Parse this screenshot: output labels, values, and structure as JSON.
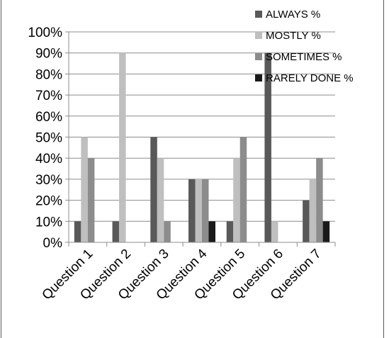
{
  "chart_data": {
    "type": "bar",
    "categories": [
      "Question 1",
      "Question 2",
      "Question 3",
      "Question 4",
      "Question 5",
      "Question 6",
      "Question 7"
    ],
    "series": [
      {
        "name": "ALWAYS %",
        "color": "#595959",
        "values": [
          10,
          10,
          50,
          30,
          10,
          90,
          20
        ]
      },
      {
        "name": "MOSTLY %",
        "color": "#bfbfbf",
        "values": [
          50,
          90,
          40,
          30,
          40,
          10,
          30
        ]
      },
      {
        "name": "SOMETIMES %",
        "color": "#8c8c8c",
        "values": [
          40,
          0,
          10,
          30,
          50,
          0,
          40
        ]
      },
      {
        "name": "RARELY DONE %",
        "color": "#1a1a1a",
        "values": [
          0,
          0,
          0,
          10,
          0,
          0,
          10
        ]
      }
    ],
    "yticks": [
      "0%",
      "10%",
      "20%",
      "30%",
      "40%",
      "50%",
      "60%",
      "70%",
      "80%",
      "90%",
      "100%"
    ],
    "ylim": [
      0,
      100
    ],
    "grid": true,
    "legend_position": "top-right",
    "title": "",
    "xlabel": "",
    "ylabel": ""
  }
}
